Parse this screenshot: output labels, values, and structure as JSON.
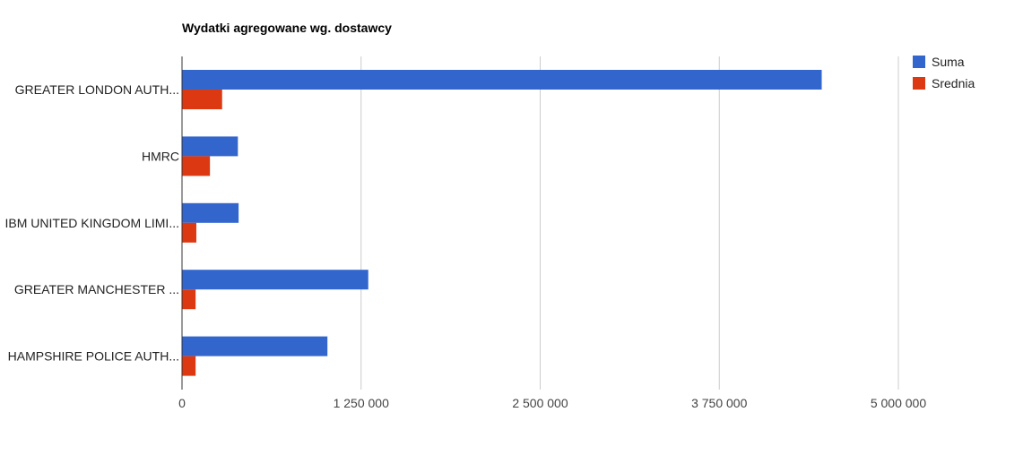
{
  "chart_data": {
    "type": "bar",
    "orientation": "horizontal",
    "title": "Wydatki agregowane wg. dostawcy",
    "xlabel": "",
    "ylabel": "",
    "categories": [
      "GREATER LONDON AUTH...",
      "HMRC",
      "IBM UNITED KINGDOM LIMI...",
      "GREATER MANCHESTER ...",
      "HAMPSHIRE POLICE AUTH..."
    ],
    "series": [
      {
        "name": "Suma",
        "color": "#3366cc",
        "values": [
          4465000,
          390000,
          395000,
          1300000,
          1015000
        ]
      },
      {
        "name": "Srednia",
        "color": "#dc3912",
        "values": [
          280000,
          195000,
          100000,
          95000,
          95000
        ]
      }
    ],
    "xlim": [
      0,
      5000000
    ],
    "ticks": [
      0,
      1250000,
      2500000,
      3750000,
      5000000
    ],
    "tick_labels": [
      "0",
      "1 250 000",
      "2 500 000",
      "3 750 000",
      "5 000 000"
    ],
    "grid": true,
    "legend": "right"
  }
}
